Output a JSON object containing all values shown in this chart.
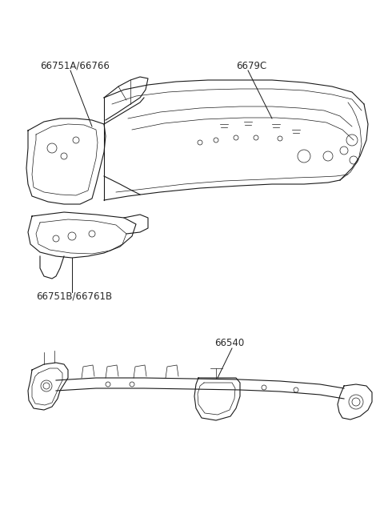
{
  "bg_color": "#ffffff",
  "line_color": "#1a1a1a",
  "text_color": "#2a2a2a",
  "labels": {
    "label1": "66751A/66766",
    "label2": "6679C",
    "label3": "66751B/66761B",
    "label4": "66540"
  },
  "font_size": 8.5,
  "figsize": [
    4.8,
    6.57
  ],
  "dpi": 100
}
